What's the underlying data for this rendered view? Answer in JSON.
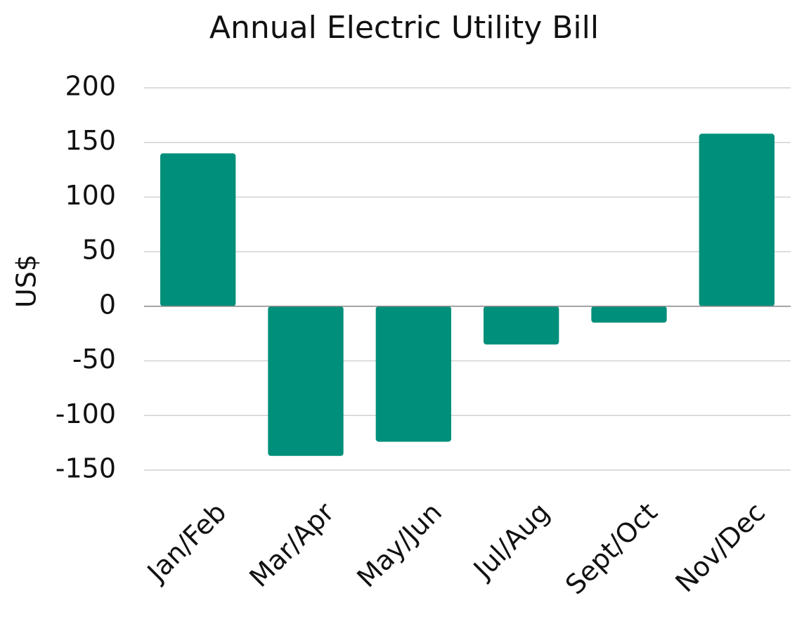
{
  "chart_data": {
    "type": "bar",
    "title": "Annual Electric Utility Bill",
    "y_label": "US$",
    "categories": [
      "Jan/Feb",
      "Mar/Apr",
      "May/Jun",
      "Jul/Aug",
      "Sept/Oct",
      "Nov/Dec"
    ],
    "values": [
      140,
      -137,
      -124,
      -35,
      -15,
      158
    ],
    "color": "#008f7a",
    "ylim": [
      -150,
      200
    ],
    "yticks": [
      -150,
      -100,
      -50,
      0,
      50,
      100,
      150,
      200
    ],
    "grid": true
  }
}
